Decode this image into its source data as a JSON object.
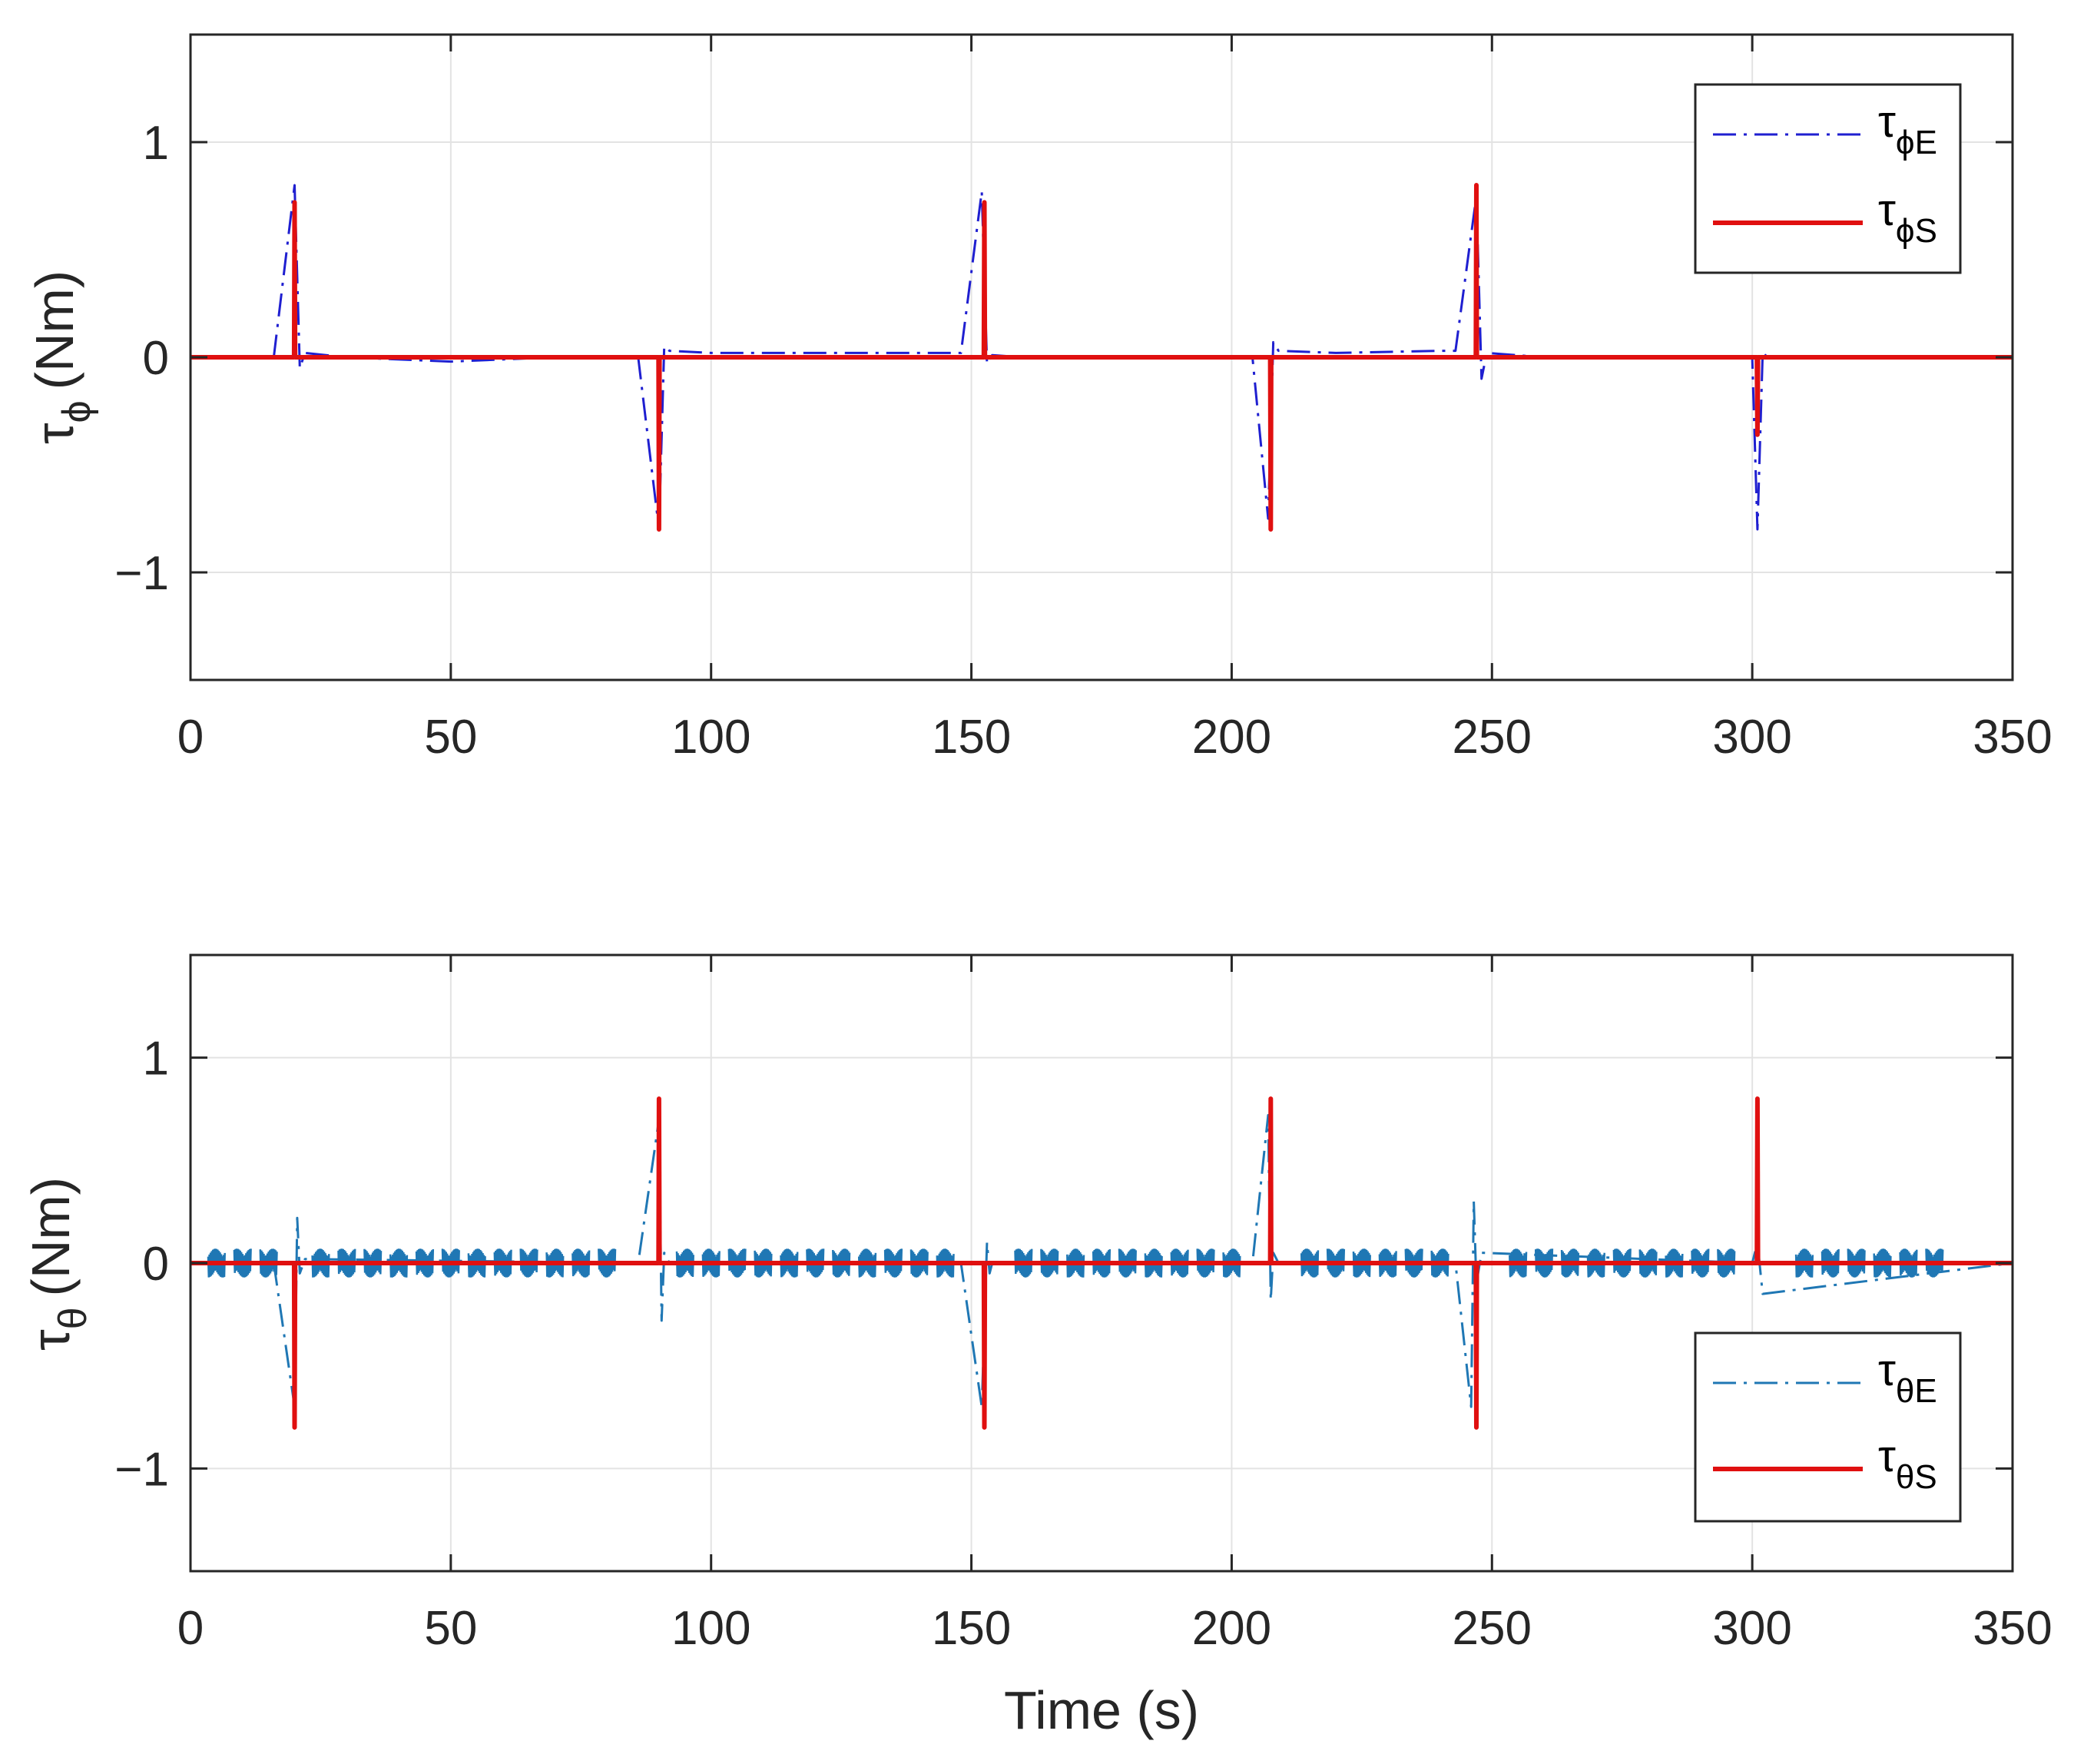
{
  "chart_data": [
    {
      "type": "line",
      "ylabel": "τ",
      "ylabel_sub": "ϕ",
      "ylabel_unit": "(Nm)",
      "xlabel": "",
      "xlim": [
        0,
        350
      ],
      "ylim": [
        -1.5,
        1.5
      ],
      "xticks": [
        0,
        50,
        100,
        150,
        200,
        250,
        300,
        350
      ],
      "yticks": [
        -1,
        0,
        1
      ],
      "ytick_labels": [
        "−1",
        "0",
        "1"
      ],
      "grid": true,
      "legend_position": "top-right",
      "series": [
        {
          "name": "τ",
          "sub": "ϕE",
          "style": "dash-dot",
          "color": "#1f1fd0",
          "x": [
            0,
            16,
            20,
            21,
            22,
            30,
            50,
            70,
            86,
            90,
            91,
            92,
            100,
            120,
            140,
            148,
            152,
            153,
            154,
            160,
            180,
            200,
            204,
            207,
            208,
            209,
            220,
            240,
            243,
            247,
            248,
            249,
            260,
            280,
            300,
            301,
            302,
            303,
            320,
            350
          ],
          "y": [
            0,
            0,
            0.8,
            -0.05,
            0.02,
            0,
            -0.02,
            0,
            0,
            -0.8,
            0.05,
            0.03,
            0.02,
            0.02,
            0.02,
            0.02,
            0.77,
            -0.03,
            0.01,
            0,
            0,
            0,
            0,
            -0.75,
            0.07,
            0.03,
            0.02,
            0.03,
            0.03,
            0.75,
            -0.1,
            0.02,
            0,
            0,
            0,
            -0.8,
            0.02,
            0,
            0,
            0
          ]
        },
        {
          "name": "τ",
          "sub": "ϕS",
          "style": "solid",
          "color": "#e01010",
          "x": [
            0,
            19.9,
            20,
            20.1,
            89.9,
            90,
            90.1,
            152.4,
            152.5,
            152.6,
            207.4,
            207.5,
            207.6,
            246.9,
            247,
            247.1,
            300.9,
            301,
            301.1,
            350
          ],
          "y": [
            0,
            0,
            0.72,
            0,
            0,
            -0.8,
            0,
            0,
            0.72,
            0,
            0,
            -0.8,
            0,
            0,
            0.8,
            0,
            0,
            -0.36,
            0,
            0
          ]
        }
      ]
    },
    {
      "type": "line",
      "ylabel": "τ",
      "ylabel_sub": "θ",
      "ylabel_unit": "(Nm)",
      "xlabel": "Time (s)",
      "xlim": [
        0,
        350
      ],
      "ylim": [
        -1.5,
        1.5
      ],
      "xticks": [
        0,
        50,
        100,
        150,
        200,
        250,
        300,
        350
      ],
      "yticks": [
        -1,
        0,
        1
      ],
      "ytick_labels": [
        "−1",
        "0",
        "1"
      ],
      "grid": true,
      "legend_position": "bottom-right",
      "series": [
        {
          "name": "τ",
          "sub": "θE",
          "style": "dash-dot",
          "color": "#1f77b4",
          "x": [
            0,
            16,
            20,
            20.5,
            21,
            22,
            86,
            90,
            90.5,
            91,
            92,
            148,
            152,
            153,
            153.5,
            154,
            204,
            207,
            207.5,
            208,
            209,
            243,
            246,
            246.5,
            247,
            248,
            300,
            301,
            302,
            350
          ],
          "y": [
            0,
            0,
            -0.7,
            0.22,
            -0.05,
            0.02,
            0,
            0.7,
            -0.28,
            0.05,
            0,
            0,
            -0.7,
            0.1,
            -0.05,
            0,
            0,
            0.72,
            -0.18,
            0.05,
            0,
            0,
            -0.7,
            0.3,
            -0.1,
            0.05,
            0,
            0.1,
            -0.15,
            0
          ]
        },
        {
          "name": "τ",
          "sub": "θS",
          "style": "solid",
          "color": "#e01010",
          "x": [
            0,
            19.9,
            20,
            20.1,
            89.9,
            90,
            90.1,
            152.4,
            152.5,
            152.6,
            207.4,
            207.5,
            207.6,
            246.9,
            247,
            247.1,
            300.9,
            301,
            301.1,
            350
          ],
          "y": [
            0,
            0,
            -0.8,
            0,
            0,
            0.8,
            0,
            0,
            -0.8,
            0,
            0,
            0.8,
            0,
            0,
            -0.8,
            0,
            0,
            0.8,
            0,
            0
          ]
        }
      ],
      "noise_bursts": [
        5,
        10,
        15,
        25,
        30,
        35,
        40,
        45,
        50,
        55,
        60,
        65,
        70,
        75,
        80,
        95,
        100,
        105,
        110,
        115,
        120,
        125,
        130,
        135,
        140,
        145,
        160,
        165,
        170,
        175,
        180,
        185,
        190,
        195,
        200,
        215,
        220,
        225,
        230,
        235,
        240,
        255,
        260,
        265,
        270,
        275,
        280,
        285,
        290,
        295,
        310,
        315,
        320,
        325,
        330,
        335
      ],
      "noise_amplitude": 0.07
    }
  ]
}
